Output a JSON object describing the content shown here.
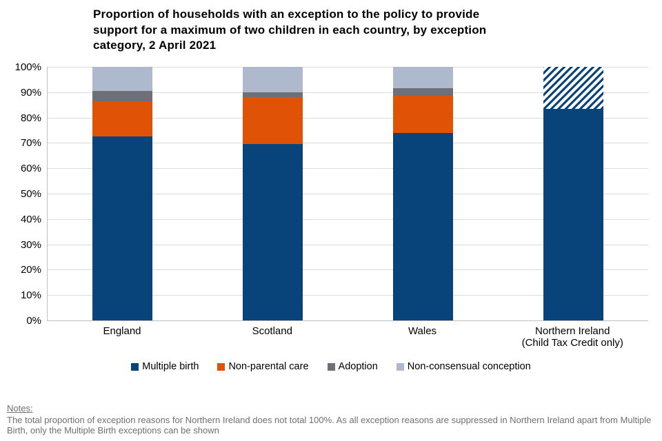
{
  "ui": {
    "title_lines": [
      "Proportion of households with an exception to the policy to provide",
      "support for a maximum of two children in each country, by exception",
      "category, 2 April 2021"
    ],
    "y_axis_labels": [
      "100%",
      "90%",
      "80%",
      "70%",
      "60%",
      "50%",
      "40%",
      "30%",
      "20%",
      "10%",
      "0%"
    ],
    "notes": {
      "heading": "Notes:",
      "body": "The total proportion of exception reasons for Northern Ireland does not total 100%. As all exception reasons are suppressed in Northern Ireland apart from Multiple Birth, only the Multiple Birth exceptions can be shown"
    },
    "colors": {
      "multiple_birth": "#084379",
      "non_parental_care": "#e05306",
      "adoption": "#6e7077",
      "non_consensual_conception": "#aeb9ce",
      "gridline": "#d9d9d9",
      "axis_border": "#bfbfbf",
      "notes_text": "#6f6f6f"
    }
  },
  "chart_data": {
    "type": "bar",
    "stacked": true,
    "title": "Proportion of households with an exception to the policy to provide support for a maximum of two children in each country, by exception category, 2 April 2021",
    "categories": [
      "England",
      "Scotland",
      "Wales",
      "Northern Ireland (Child Tax Credit only)"
    ],
    "series": [
      {
        "name": "Multiple birth",
        "color": "#084379",
        "values": [
          72.5,
          69.5,
          74,
          83.5
        ]
      },
      {
        "name": "Non-parental care",
        "color": "#e05306",
        "values": [
          14,
          18.5,
          14.5,
          null
        ]
      },
      {
        "name": "Adoption",
        "color": "#6e7077",
        "values": [
          4,
          2,
          3,
          null
        ]
      },
      {
        "name": "Non-consensual conception",
        "color": "#aeb9ce",
        "values": [
          9.5,
          10,
          8.5,
          null
        ]
      }
    ],
    "suppressed_segment": {
      "category": "Northern Ireland (Child Tax Credit only)",
      "category_index": 3,
      "value": 16.5,
      "pattern": "diagonal-hatch",
      "pattern_color": "#084379"
    },
    "xlabel": "",
    "ylabel": "",
    "ylim": [
      0,
      100
    ],
    "ytick_step": 10,
    "grid": true,
    "legend_position": "bottom"
  }
}
